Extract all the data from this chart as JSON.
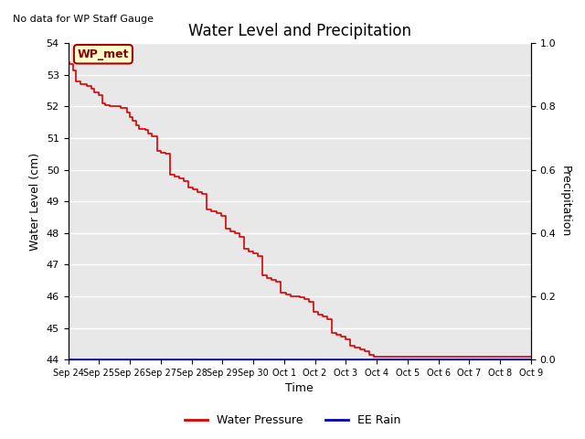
{
  "title": "Water Level and Precipitation",
  "top_left_text": "No data for WP Staff Gauge",
  "ylabel_left": "Water Level (cm)",
  "ylabel_right": "Precipitation",
  "xlabel": "Time",
  "ylim_left": [
    44.0,
    54.0
  ],
  "ylim_right": [
    0.0,
    1.0
  ],
  "yticks_left": [
    44.0,
    45.0,
    46.0,
    47.0,
    48.0,
    49.0,
    50.0,
    51.0,
    52.0,
    53.0,
    54.0
  ],
  "yticks_right": [
    0.0,
    0.2,
    0.4,
    0.6,
    0.8,
    1.0
  ],
  "background_color": "#e8e8e8",
  "line_color_water": "#dd0000",
  "line_color_rain": "#0000bb",
  "legend_box_label": "WP_met",
  "legend_box_bg": "#ffffcc",
  "legend_box_edge": "#aa0000",
  "water_pressure_data": [
    [
      0.0,
      53.4
    ],
    [
      0.05,
      53.4
    ],
    [
      0.05,
      53.35
    ],
    [
      0.15,
      53.35
    ],
    [
      0.15,
      53.15
    ],
    [
      0.25,
      53.15
    ],
    [
      0.25,
      52.8
    ],
    [
      0.4,
      52.8
    ],
    [
      0.4,
      52.7
    ],
    [
      0.6,
      52.7
    ],
    [
      0.6,
      52.65
    ],
    [
      0.75,
      52.65
    ],
    [
      0.75,
      52.55
    ],
    [
      0.85,
      52.55
    ],
    [
      0.85,
      52.45
    ],
    [
      1.0,
      52.45
    ],
    [
      1.0,
      52.35
    ],
    [
      1.1,
      52.35
    ],
    [
      1.1,
      52.1
    ],
    [
      1.2,
      52.1
    ],
    [
      1.2,
      52.05
    ],
    [
      1.35,
      52.05
    ],
    [
      1.35,
      52.02
    ],
    [
      1.5,
      52.02
    ],
    [
      1.5,
      52.0
    ],
    [
      1.7,
      52.0
    ],
    [
      1.7,
      51.95
    ],
    [
      1.9,
      51.95
    ],
    [
      1.9,
      51.8
    ],
    [
      2.0,
      51.8
    ],
    [
      2.0,
      51.65
    ],
    [
      2.1,
      51.65
    ],
    [
      2.1,
      51.55
    ],
    [
      2.2,
      51.55
    ],
    [
      2.2,
      51.4
    ],
    [
      2.3,
      51.4
    ],
    [
      2.3,
      51.3
    ],
    [
      2.5,
      51.3
    ],
    [
      2.5,
      51.25
    ],
    [
      2.6,
      51.25
    ],
    [
      2.6,
      51.15
    ],
    [
      2.7,
      51.15
    ],
    [
      2.7,
      51.05
    ],
    [
      2.9,
      51.05
    ],
    [
      2.9,
      50.6
    ],
    [
      3.0,
      50.6
    ],
    [
      3.0,
      50.55
    ],
    [
      3.15,
      50.55
    ],
    [
      3.15,
      50.5
    ],
    [
      3.3,
      50.5
    ],
    [
      3.3,
      49.85
    ],
    [
      3.45,
      49.85
    ],
    [
      3.45,
      49.78
    ],
    [
      3.6,
      49.78
    ],
    [
      3.6,
      49.72
    ],
    [
      3.75,
      49.72
    ],
    [
      3.75,
      49.65
    ],
    [
      3.9,
      49.65
    ],
    [
      3.9,
      49.45
    ],
    [
      4.05,
      49.45
    ],
    [
      4.05,
      49.38
    ],
    [
      4.2,
      49.38
    ],
    [
      4.2,
      49.3
    ],
    [
      4.35,
      49.3
    ],
    [
      4.35,
      49.25
    ],
    [
      4.5,
      49.25
    ],
    [
      4.5,
      48.75
    ],
    [
      4.65,
      48.75
    ],
    [
      4.65,
      48.68
    ],
    [
      4.8,
      48.68
    ],
    [
      4.8,
      48.62
    ],
    [
      4.95,
      48.62
    ],
    [
      4.95,
      48.55
    ],
    [
      5.1,
      48.55
    ],
    [
      5.1,
      48.15
    ],
    [
      5.25,
      48.15
    ],
    [
      5.25,
      48.05
    ],
    [
      5.4,
      48.05
    ],
    [
      5.4,
      47.98
    ],
    [
      5.55,
      47.98
    ],
    [
      5.55,
      47.88
    ],
    [
      5.7,
      47.88
    ],
    [
      5.7,
      47.5
    ],
    [
      5.85,
      47.5
    ],
    [
      5.85,
      47.42
    ],
    [
      6.0,
      47.42
    ],
    [
      6.0,
      47.35
    ],
    [
      6.15,
      47.35
    ],
    [
      6.15,
      47.28
    ],
    [
      6.3,
      47.28
    ],
    [
      6.3,
      46.65
    ],
    [
      6.45,
      46.65
    ],
    [
      6.45,
      46.58
    ],
    [
      6.6,
      46.58
    ],
    [
      6.6,
      46.52
    ],
    [
      6.75,
      46.52
    ],
    [
      6.75,
      46.45
    ],
    [
      6.9,
      46.45
    ],
    [
      6.9,
      46.1
    ],
    [
      7.05,
      46.1
    ],
    [
      7.05,
      46.05
    ],
    [
      7.2,
      46.05
    ],
    [
      7.2,
      46.0
    ],
    [
      7.5,
      46.0
    ],
    [
      7.5,
      45.98
    ],
    [
      7.65,
      45.98
    ],
    [
      7.65,
      45.9
    ],
    [
      7.8,
      45.9
    ],
    [
      7.8,
      45.82
    ],
    [
      7.95,
      45.82
    ],
    [
      7.95,
      45.5
    ],
    [
      8.1,
      45.5
    ],
    [
      8.1,
      45.42
    ],
    [
      8.25,
      45.42
    ],
    [
      8.25,
      45.35
    ],
    [
      8.4,
      45.35
    ],
    [
      8.4,
      45.28
    ],
    [
      8.55,
      45.28
    ],
    [
      8.55,
      44.85
    ],
    [
      8.7,
      44.85
    ],
    [
      8.7,
      44.78
    ],
    [
      8.85,
      44.78
    ],
    [
      8.85,
      44.72
    ],
    [
      9.0,
      44.72
    ],
    [
      9.0,
      44.65
    ],
    [
      9.15,
      44.65
    ],
    [
      9.15,
      44.45
    ],
    [
      9.3,
      44.45
    ],
    [
      9.3,
      44.38
    ],
    [
      9.45,
      44.38
    ],
    [
      9.45,
      44.32
    ],
    [
      9.6,
      44.32
    ],
    [
      9.6,
      44.25
    ],
    [
      9.75,
      44.25
    ],
    [
      9.75,
      44.15
    ],
    [
      9.9,
      44.15
    ],
    [
      9.9,
      44.1
    ],
    [
      15.0,
      44.1
    ]
  ],
  "xtick_labels": [
    "Sep 24",
    "Sep 25",
    "Sep 26",
    "Sep 27",
    "Sep 28",
    "Sep 29",
    "Sep 30",
    "Oct 1",
    "Oct 2",
    "Oct 3",
    "Oct 4",
    "Oct 5",
    "Oct 6",
    "Oct 7",
    "Oct 8",
    "Oct 9"
  ],
  "xlim": [
    0,
    15
  ],
  "title_fontsize": 12,
  "axis_fontsize": 9,
  "tick_fontsize": 8,
  "xtick_fontsize": 7
}
